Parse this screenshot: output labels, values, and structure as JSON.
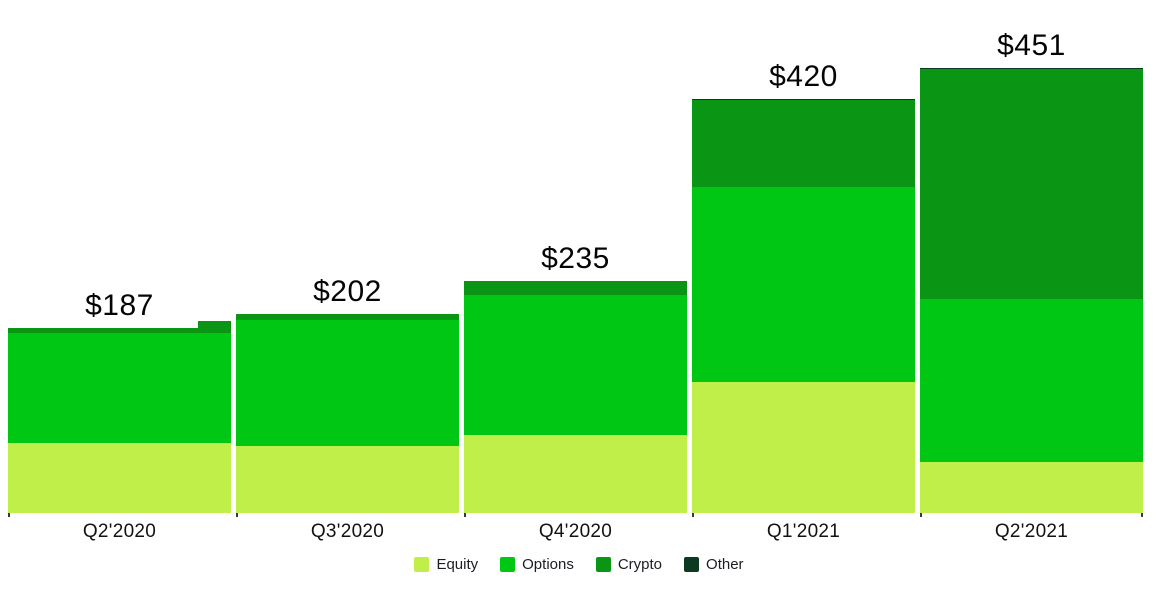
{
  "chart_data": {
    "type": "bar",
    "stacked": true,
    "title": "",
    "xlabel": "",
    "ylabel": "",
    "ylim": [
      0,
      451
    ],
    "grid": false,
    "legend_position": "bottom",
    "categories": [
      "Q2'2020",
      "Q3'2020",
      "Q4'2020",
      "Q1'2021",
      "Q2'2021"
    ],
    "totals": [
      187,
      202,
      235,
      420,
      451
    ],
    "totals_labels": [
      "$187",
      "$202",
      "$235",
      "$420",
      "$451"
    ],
    "series": [
      {
        "name": "Equity",
        "color": "#c1ef4a",
        "values": [
          71,
          68,
          79,
          133,
          52
        ]
      },
      {
        "name": "Options",
        "color": "#00c713",
        "values": [
          111,
          128,
          142,
          198,
          165
        ]
      },
      {
        "name": "Crypto",
        "color": "#0a9614",
        "values": [
          5,
          6,
          14,
          88,
          233
        ]
      },
      {
        "name": "Other",
        "color": "#0b3a20",
        "values": [
          0,
          0,
          0,
          1,
          1
        ]
      }
    ],
    "artifacts": {
      "first_bar_top_step": true
    }
  },
  "colors": {
    "background": "#ffffff",
    "value_label_text": "#050507",
    "axis_label_text": "#121216",
    "legend_text": "#1c1c24",
    "tick": "#3a3a3a"
  }
}
